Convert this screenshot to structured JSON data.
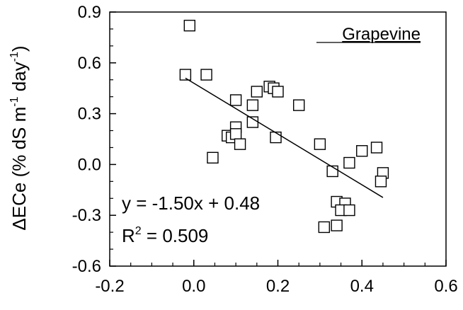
{
  "chart_data": {
    "type": "scatter",
    "title": "",
    "xlabel": "",
    "ylabel_parts": {
      "main": "ΔECe (% dS m",
      "exp1": "-1",
      "mid": " day",
      "exp2": "-1",
      "end": ")"
    },
    "xlim": [
      -0.2,
      0.6
    ],
    "ylim": [
      -0.6,
      0.9
    ],
    "x_ticks": [
      -0.2,
      0.0,
      0.2,
      0.4,
      0.6
    ],
    "x_tick_labels": [
      "-0.2",
      "0.0",
      "0.2",
      "0.4",
      "0.6"
    ],
    "y_ticks": [
      -0.6,
      -0.3,
      0.0,
      0.3,
      0.6,
      0.9
    ],
    "y_tick_labels": [
      "-0.6",
      "-0.3",
      "0.0",
      "0.3",
      "0.6",
      "0.9"
    ],
    "legend": "Grapevine",
    "legend_position": "top-right",
    "grid": false,
    "marker": "open-square",
    "series": [
      {
        "x": [
          -0.01,
          -0.02,
          0.03,
          0.1,
          0.14,
          0.15,
          0.18,
          0.19,
          0.2,
          0.25,
          0.1,
          0.14,
          0.08,
          0.09,
          0.1,
          0.11,
          0.045,
          0.195,
          0.3,
          0.33,
          0.37,
          0.4,
          0.435,
          0.45,
          0.445,
          0.34,
          0.36,
          0.35,
          0.37,
          0.31,
          0.34
        ],
        "y": [
          0.82,
          0.53,
          0.53,
          0.38,
          0.35,
          0.43,
          0.46,
          0.45,
          0.43,
          0.35,
          0.22,
          0.25,
          0.17,
          0.16,
          0.18,
          0.12,
          0.04,
          0.16,
          0.12,
          -0.04,
          0.01,
          0.08,
          0.1,
          -0.05,
          -0.1,
          -0.22,
          -0.23,
          -0.27,
          -0.27,
          -0.37,
          -0.36
        ]
      }
    ],
    "regression": {
      "slope": -1.5,
      "intercept": 0.48,
      "x_range": [
        -0.02,
        0.45
      ],
      "equation_text": "y = -1.50x + 0.48",
      "r2_prefix": "R",
      "r2_exp": "2",
      "r2_suffix": " = 0.509"
    }
  }
}
